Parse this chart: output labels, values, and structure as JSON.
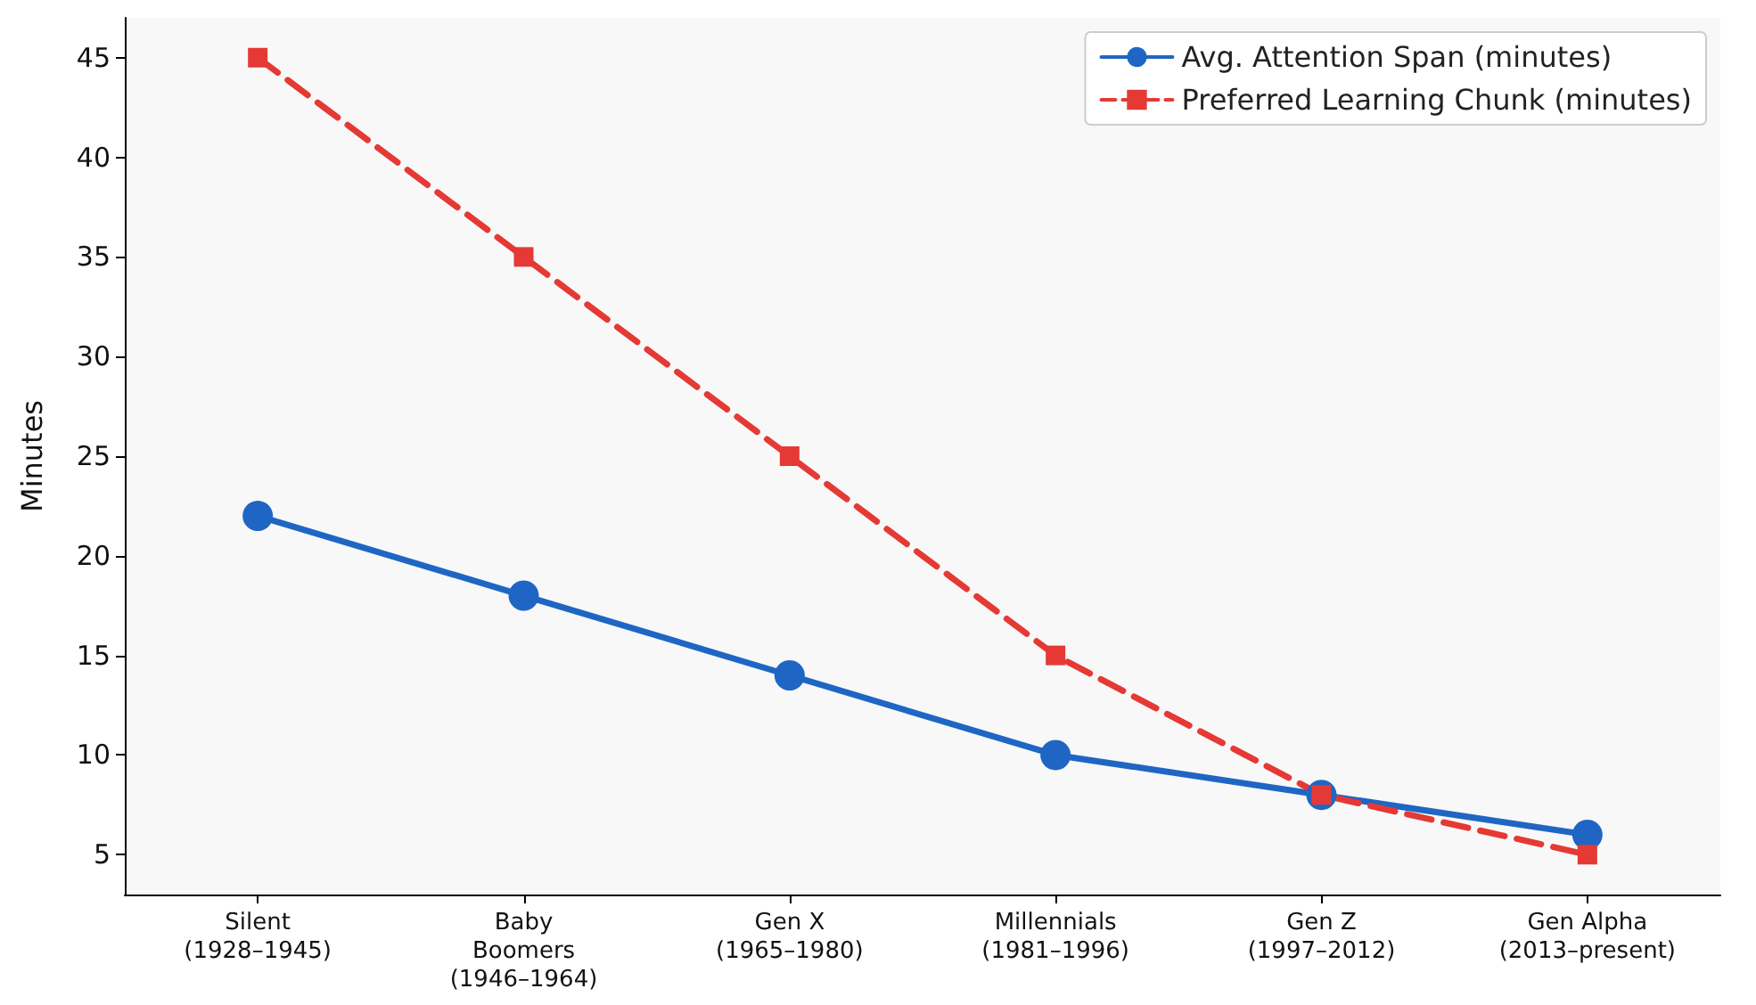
{
  "chart_data": {
    "type": "line",
    "ylabel": "Minutes",
    "categories": [
      "Silent\n(1928–1945)",
      "Baby\nBoomers\n(1946–1964)",
      "Gen X\n(1965–1980)",
      "Millennials\n(1981–1996)",
      "Gen Z\n(1997–2012)",
      "Gen Alpha\n(2013–present)"
    ],
    "series": [
      {
        "name": "Avg. Attention Span (minutes)",
        "color": "#1f66c4",
        "values": [
          22,
          18,
          14,
          10,
          8,
          6
        ],
        "marker": "circle",
        "line_style": "solid"
      },
      {
        "name": "Preferred Learning Chunk (minutes)",
        "color": "#e53935",
        "values": [
          45,
          35,
          25,
          15,
          8,
          5
        ],
        "marker": "square",
        "line_style": "dashed"
      }
    ],
    "ylim": [
      3,
      47
    ],
    "yticks": [
      5,
      10,
      15,
      20,
      25,
      30,
      35,
      40,
      45
    ],
    "grid": false,
    "legend": "top right"
  }
}
